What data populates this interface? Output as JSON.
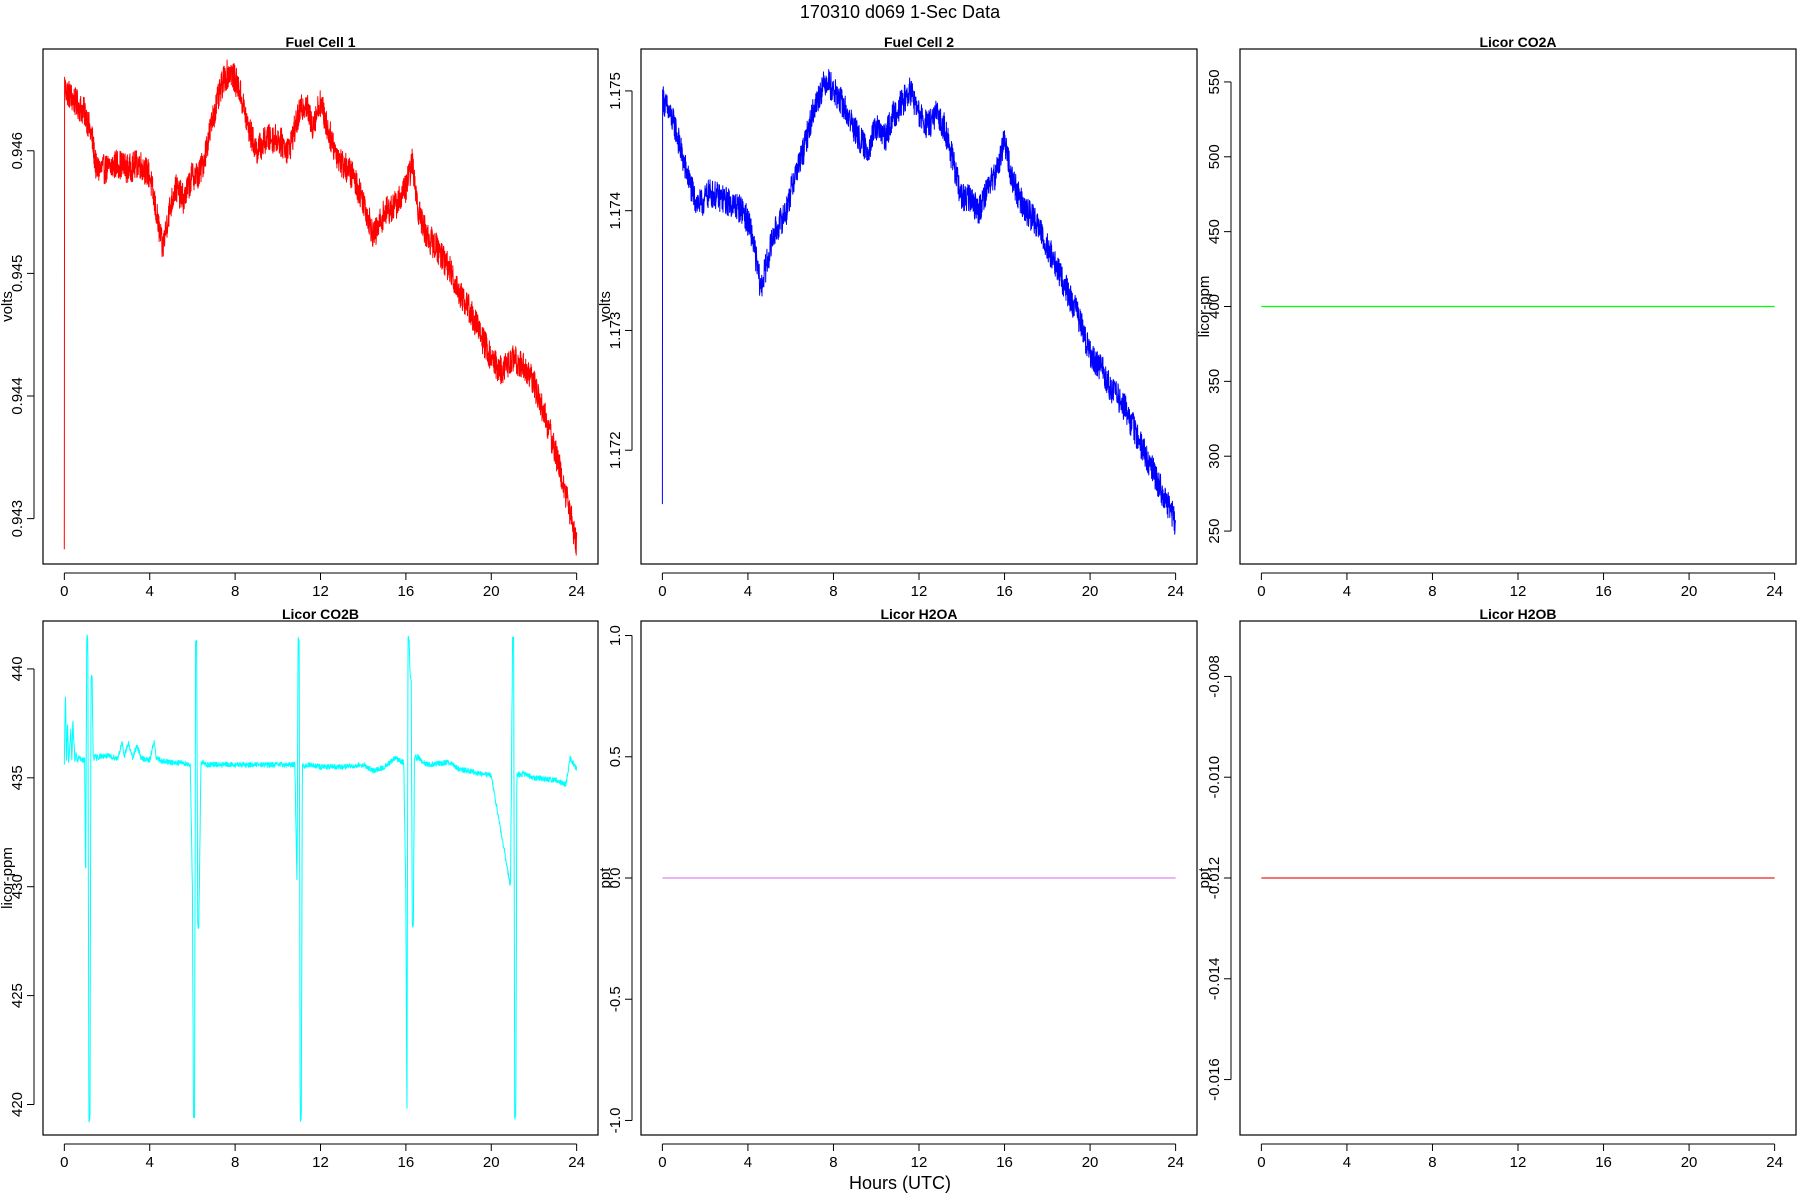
{
  "figure": {
    "title": "170310   d069   1-Sec Data",
    "xlabel": "Hours (UTC)"
  },
  "chart_data": [
    {
      "type": "line",
      "title": "Fuel Cell 1",
      "ylabel": "volts",
      "color": "#ff0000",
      "xlim": [
        -1,
        25
      ],
      "ylim": [
        0.94263,
        0.94683
      ],
      "xticks": [
        0,
        4,
        8,
        12,
        16,
        20,
        24
      ],
      "yticks": [
        0.943,
        0.944,
        0.945,
        0.946
      ],
      "ytick_labels": [
        "0.943",
        "0.944",
        "0.945",
        "0.946"
      ],
      "noise": 0.00012,
      "x": [
        0,
        0.01,
        0.05,
        0.5,
        1.0,
        1.3,
        1.5,
        2.0,
        2.5,
        3.0,
        3.5,
        4.0,
        4.3,
        4.6,
        4.9,
        5.2,
        5.6,
        6.0,
        6.3,
        6.5,
        7.0,
        7.5,
        7.8,
        8.2,
        8.6,
        9.0,
        9.5,
        10.0,
        10.5,
        11.0,
        11.3,
        11.6,
        12.0,
        12.3,
        12.7,
        13.0,
        13.5,
        14.0,
        14.5,
        15.0,
        15.5,
        16.0,
        16.3,
        16.6,
        17.0,
        17.5,
        18.0,
        18.5,
        19.0,
        19.5,
        20.0,
        20.5,
        21.0,
        21.5,
        22.0,
        22.5,
        23.0,
        23.5,
        24.0
      ],
      "y": [
        0.94275,
        0.94655,
        0.9465,
        0.9464,
        0.9463,
        0.9461,
        0.94585,
        0.94585,
        0.9459,
        0.94585,
        0.9459,
        0.9458,
        0.9455,
        0.9452,
        0.9455,
        0.9457,
        0.9456,
        0.9458,
        0.9458,
        0.9459,
        0.9463,
        0.9466,
        0.94665,
        0.9465,
        0.9462,
        0.946,
        0.9461,
        0.9461,
        0.946,
        0.9463,
        0.9464,
        0.9462,
        0.9464,
        0.9462,
        0.946,
        0.9459,
        0.9458,
        0.9456,
        0.9453,
        0.9455,
        0.94555,
        0.9457,
        0.9459,
        0.9455,
        0.9453,
        0.9452,
        0.94505,
        0.94485,
        0.9447,
        0.9445,
        0.9443,
        0.9442,
        0.9443,
        0.94425,
        0.9441,
        0.94385,
        0.94355,
        0.9432,
        0.9428
      ]
    },
    {
      "type": "line",
      "title": "Fuel Cell 2",
      "ylabel": "volts",
      "color": "#0000ff",
      "xlim": [
        -1,
        25
      ],
      "ylim": [
        1.17105,
        1.17535
      ],
      "xticks": [
        0,
        4,
        8,
        12,
        16,
        20,
        24
      ],
      "yticks": [
        1.172,
        1.173,
        1.174,
        1.175
      ],
      "ytick_labels": [
        "1.172",
        "1.173",
        "1.174",
        "1.175"
      ],
      "noise": 0.00012,
      "x": [
        0,
        0.01,
        0.1,
        0.6,
        1.0,
        1.5,
        1.8,
        2.2,
        2.8,
        3.3,
        3.8,
        4.2,
        4.6,
        4.8,
        5.2,
        5.8,
        6.2,
        6.6,
        7.0,
        7.4,
        7.7,
        8.0,
        8.4,
        8.8,
        9.2,
        9.6,
        10.0,
        10.4,
        10.8,
        11.2,
        11.6,
        12.0,
        12.4,
        12.8,
        13.2,
        13.6,
        14.0,
        14.4,
        14.8,
        15.2,
        15.6,
        16.0,
        16.3,
        16.7,
        17.0,
        17.5,
        18.0,
        18.5,
        19.0,
        19.5,
        20.0,
        20.5,
        21.0,
        21.5,
        22.0,
        22.5,
        23.0,
        23.5,
        24.0
      ],
      "y": [
        1.17155,
        1.17495,
        1.1749,
        1.1747,
        1.1744,
        1.1741,
        1.17405,
        1.17415,
        1.1741,
        1.17405,
        1.174,
        1.1738,
        1.17335,
        1.1735,
        1.1738,
        1.174,
        1.1743,
        1.1745,
        1.1748,
        1.175,
        1.1751,
        1.175,
        1.1749,
        1.17475,
        1.1746,
        1.1745,
        1.1747,
        1.1746,
        1.1748,
        1.1749,
        1.175,
        1.1748,
        1.1747,
        1.1748,
        1.1747,
        1.1744,
        1.1741,
        1.1741,
        1.174,
        1.1742,
        1.1743,
        1.1746,
        1.1743,
        1.1741,
        1.174,
        1.1739,
        1.1737,
        1.1735,
        1.1733,
        1.1731,
        1.1728,
        1.1727,
        1.1725,
        1.1724,
        1.1722,
        1.172,
        1.1718,
        1.1716,
        1.1714
      ]
    },
    {
      "type": "line",
      "title": "Licor CO2A",
      "ylabel": "licor-ppm",
      "color": "#00ff00",
      "xlim": [
        -1,
        25
      ],
      "ylim": [
        228,
        572
      ],
      "xticks": [
        0,
        4,
        8,
        12,
        16,
        20,
        24
      ],
      "yticks": [
        250,
        300,
        350,
        400,
        450,
        500,
        550
      ],
      "ytick_labels": [
        "250",
        "300",
        "350",
        "400",
        "450",
        "500",
        "550"
      ],
      "noise": 0,
      "x": [
        0,
        24
      ],
      "y": [
        400,
        400
      ]
    },
    {
      "type": "line",
      "title": "Licor CO2B",
      "ylabel": "licor-ppm",
      "color": "#00ffff",
      "xlim": [
        -1,
        25
      ],
      "ylim": [
        418.6,
        442.2
      ],
      "xticks": [
        0,
        4,
        8,
        12,
        16,
        20,
        24
      ],
      "yticks": [
        420,
        425,
        430,
        435,
        440
      ],
      "ytick_labels": [
        "420",
        "425",
        "430",
        "435",
        "440"
      ],
      "noise": 0.12,
      "x": [
        0,
        0.05,
        0.1,
        0.15,
        0.2,
        0.3,
        0.35,
        0.4,
        0.5,
        0.55,
        0.6,
        0.7,
        0.8,
        0.95,
        1.0,
        1.05,
        1.1,
        1.15,
        1.2,
        1.25,
        1.3,
        1.35,
        1.4,
        1.45,
        1.5,
        1.55,
        1.6,
        1.65,
        2.0,
        2.5,
        2.7,
        2.8,
        3.0,
        3.2,
        3.4,
        3.6,
        4.0,
        4.2,
        4.3,
        4.5,
        5.0,
        5.5,
        5.9,
        6.0,
        6.05,
        6.1,
        6.15,
        6.2,
        6.25,
        6.3,
        6.4,
        6.5,
        6.55,
        6.6,
        6.65,
        6.7,
        7.0,
        8.0,
        9.0,
        10.0,
        10.8,
        10.9,
        10.95,
        11.0,
        11.05,
        11.1,
        11.15,
        11.2,
        11.25,
        11.3,
        11.35,
        11.4,
        12.0,
        13.0,
        14.0,
        14.5,
        15.0,
        15.5,
        15.9,
        16.0,
        16.05,
        16.1,
        16.15,
        16.2,
        16.25,
        16.3,
        16.35,
        16.4,
        16.45,
        16.5,
        16.55,
        16.6,
        16.65,
        16.7,
        17.0,
        18.0,
        18.5,
        19.0,
        20.0,
        20.9,
        21.0,
        21.05,
        21.1,
        21.15,
        21.2,
        21.25,
        21.3,
        21.35,
        21.5,
        22.0,
        23.0,
        23.5,
        23.7,
        24.0
      ],
      "y": [
        435.6,
        439.0,
        435.8,
        437.6,
        435.6,
        437.2,
        435.8,
        437.6,
        435.7,
        436.2,
        435.7,
        436.0,
        435.8,
        435.8,
        430.0,
        441.5,
        441.5,
        419.3,
        419.3,
        439.6,
        439.6,
        436.0,
        435.9,
        436.0,
        435.9,
        436.0,
        435.9,
        436.0,
        436.0,
        435.9,
        436.6,
        436.0,
        436.6,
        435.9,
        436.5,
        435.9,
        435.8,
        436.7,
        435.9,
        435.8,
        435.7,
        435.7,
        435.6,
        430.0,
        419.4,
        419.4,
        441.2,
        441.2,
        428.2,
        428.2,
        435.7,
        435.7,
        435.6,
        435.7,
        435.6,
        435.6,
        435.6,
        435.6,
        435.6,
        435.6,
        435.6,
        430.0,
        441.4,
        441.4,
        419.3,
        419.3,
        435.6,
        435.6,
        435.5,
        435.6,
        435.5,
        435.6,
        435.5,
        435.5,
        435.6,
        435.3,
        435.5,
        435.9,
        435.7,
        429.5,
        419.4,
        441.4,
        441.4,
        439.6,
        439.6,
        428.2,
        428.2,
        435.8,
        436.0,
        435.8,
        436.0,
        435.9,
        435.9,
        435.8,
        435.6,
        435.7,
        435.4,
        435.3,
        435.1,
        430.0,
        441.4,
        441.4,
        419.4,
        419.4,
        435.2,
        435.1,
        435.2,
        435.1,
        435.2,
        435.0,
        434.9,
        434.7,
        435.9,
        435.4
      ]
    },
    {
      "type": "line",
      "title": "Licor H2OA",
      "ylabel": "ppt",
      "color": "#dd88ee",
      "xlim": [
        -1,
        25
      ],
      "ylim": [
        -1.06,
        1.06
      ],
      "xticks": [
        0,
        4,
        8,
        12,
        16,
        20,
        24
      ],
      "yticks": [
        -1.0,
        -0.5,
        0.0,
        0.5,
        1.0
      ],
      "ytick_labels": [
        "-1.0",
        "-0.5",
        "0.0",
        "0.5",
        "1.0"
      ],
      "noise": 0,
      "x": [
        0,
        24
      ],
      "y": [
        0,
        0
      ]
    },
    {
      "type": "line",
      "title": "Licor H2OB",
      "ylabel": "ppt",
      "color": "#ee2222",
      "xlim": [
        -1,
        25
      ],
      "ylim": [
        -0.0171,
        -0.0069
      ],
      "xticks": [
        0,
        4,
        8,
        12,
        16,
        20,
        24
      ],
      "yticks": [
        -0.016,
        -0.014,
        -0.012,
        -0.01,
        -0.008
      ],
      "ytick_labels": [
        "-0.016",
        "-0.014",
        "-0.012",
        "-0.010",
        "-0.008"
      ],
      "noise": 0,
      "x": [
        0,
        24
      ],
      "y": [
        -0.012,
        -0.012
      ]
    }
  ]
}
